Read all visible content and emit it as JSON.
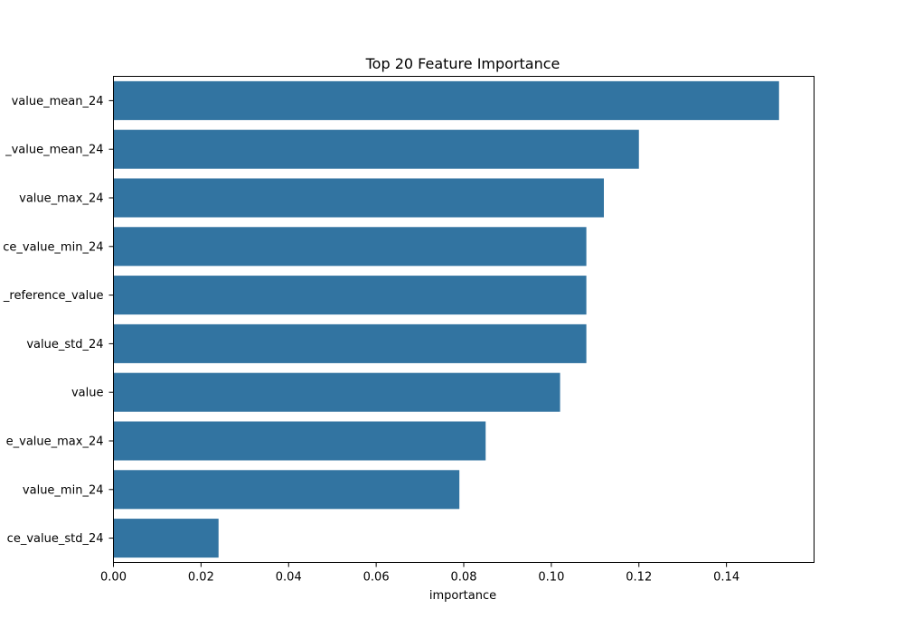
{
  "chart_data": {
    "type": "bar",
    "orientation": "horizontal",
    "title": "Top 20 Feature Importance",
    "xlabel": "importance",
    "ylabel": "",
    "xlim": [
      0,
      0.16
    ],
    "xticks": [
      0.0,
      0.02,
      0.04,
      0.06,
      0.08,
      0.1,
      0.12,
      0.14
    ],
    "xtick_labels": [
      "0.00",
      "0.02",
      "0.04",
      "0.06",
      "0.08",
      "0.10",
      "0.12",
      "0.14"
    ],
    "categories": [
      "value_mean_24",
      "_value_mean_24",
      "value_max_24",
      "ce_value_min_24",
      "_reference_value",
      "value_std_24",
      "value",
      "e_value_max_24",
      "value_min_24",
      "ce_value_std_24"
    ],
    "values": [
      0.152,
      0.12,
      0.112,
      0.108,
      0.108,
      0.108,
      0.102,
      0.085,
      0.079,
      0.024
    ],
    "bar_color": "#3274a1",
    "grid": false,
    "legend": "none"
  }
}
